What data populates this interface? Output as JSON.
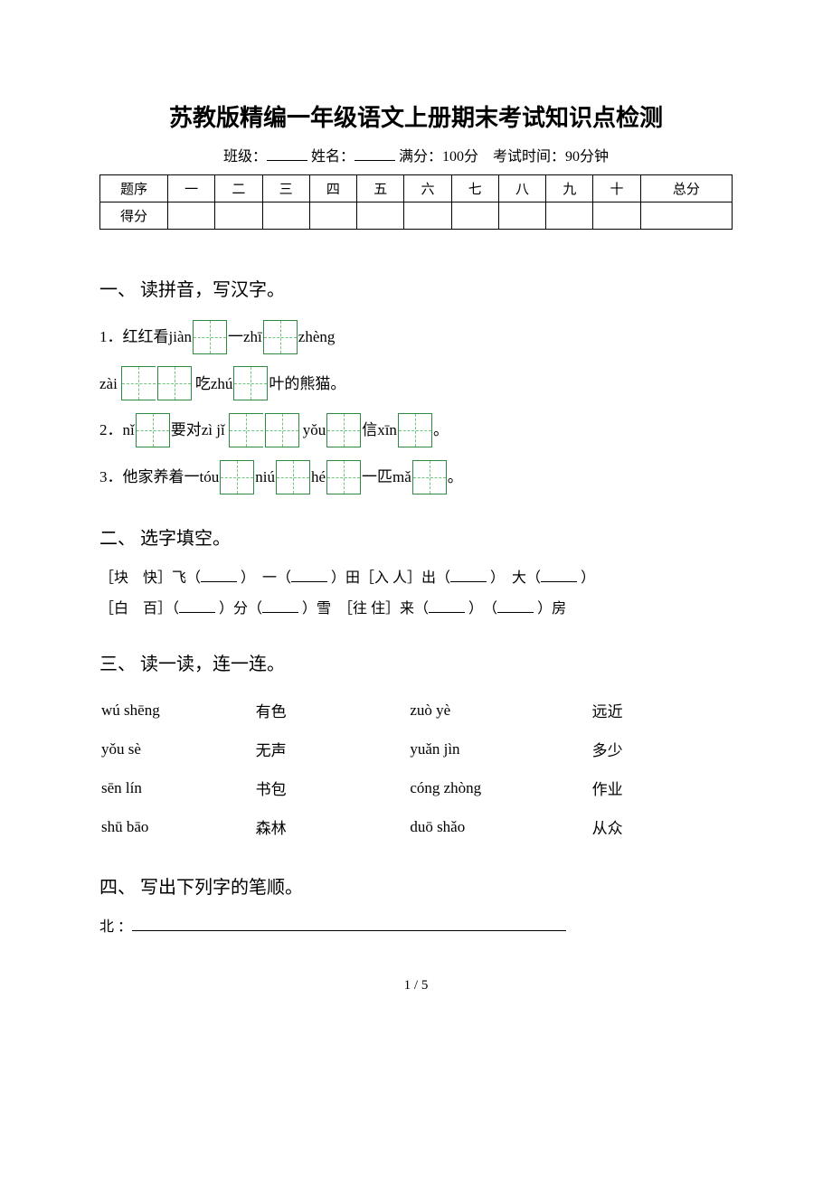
{
  "doc_title": "苏教版精编一年级语文上册期末考试知识点检测",
  "header": {
    "class_label": "班级：",
    "name_label": "姓名：",
    "full_score_label": "满分：100分",
    "time_label": "考试时间：90分钟"
  },
  "score_table": {
    "row1": [
      "题序",
      "一",
      "二",
      "三",
      "四",
      "五",
      "六",
      "七",
      "八",
      "九",
      "十",
      "总分"
    ],
    "row2_label": "得分"
  },
  "sections": {
    "s1": {
      "title": "一、 读拼音，写汉字。",
      "q1_a": "1．红红看jiàn",
      "q1_b": "一zhī",
      "q1_c": "zhèng",
      "q1_d": "zài",
      "q1_e": "吃zhú",
      "q1_f": "叶的熊猫。",
      "q2_a": "2．nǐ",
      "q2_b": "要对zì jǐ",
      "q2_c": "yǒu",
      "q2_d": "信xīn",
      "q2_e": "。",
      "q3_a": "3．他家养着一tóu",
      "q3_b": "niú",
      "q3_c": "hé",
      "q3_d": "一匹mǎ",
      "q3_e": "。"
    },
    "s2": {
      "title": "二、 选字填空。",
      "line1_a": "［块　快］飞（",
      "line1_b": "）　一（",
      "line1_c": "）田［入 人］出（",
      "line1_d": "）　大（",
      "line1_e": "）",
      "line2_a": "［白　百］（",
      "line2_b": "）分（",
      "line2_c": "）雪　［往 住］来（",
      "line2_d": "）　（",
      "line2_e": "）房"
    },
    "s3": {
      "title": "三、 读一读，连一连。",
      "rows": [
        [
          "wú shēng",
          "有色",
          "zuò yè",
          "远近"
        ],
        [
          "yǒu   sè",
          "无声",
          "yuǎn jìn",
          "多少"
        ],
        [
          "sēn   lín",
          "书包",
          "cóng zhòng",
          "作业"
        ],
        [
          "shū bāo",
          "森林",
          "duō shǎo",
          "从众"
        ]
      ]
    },
    "s4": {
      "title": "四、 写出下列字的笔顺。",
      "q1": "北 ："
    }
  },
  "page_num": "1 / 5",
  "colors": {
    "text": "#000000",
    "box_border": "#2d8a3e",
    "box_dash": "#6fc47e",
    "background": "#ffffff"
  },
  "fonts": {
    "title_size": 26,
    "body_size": 16,
    "section_size": 20
  }
}
